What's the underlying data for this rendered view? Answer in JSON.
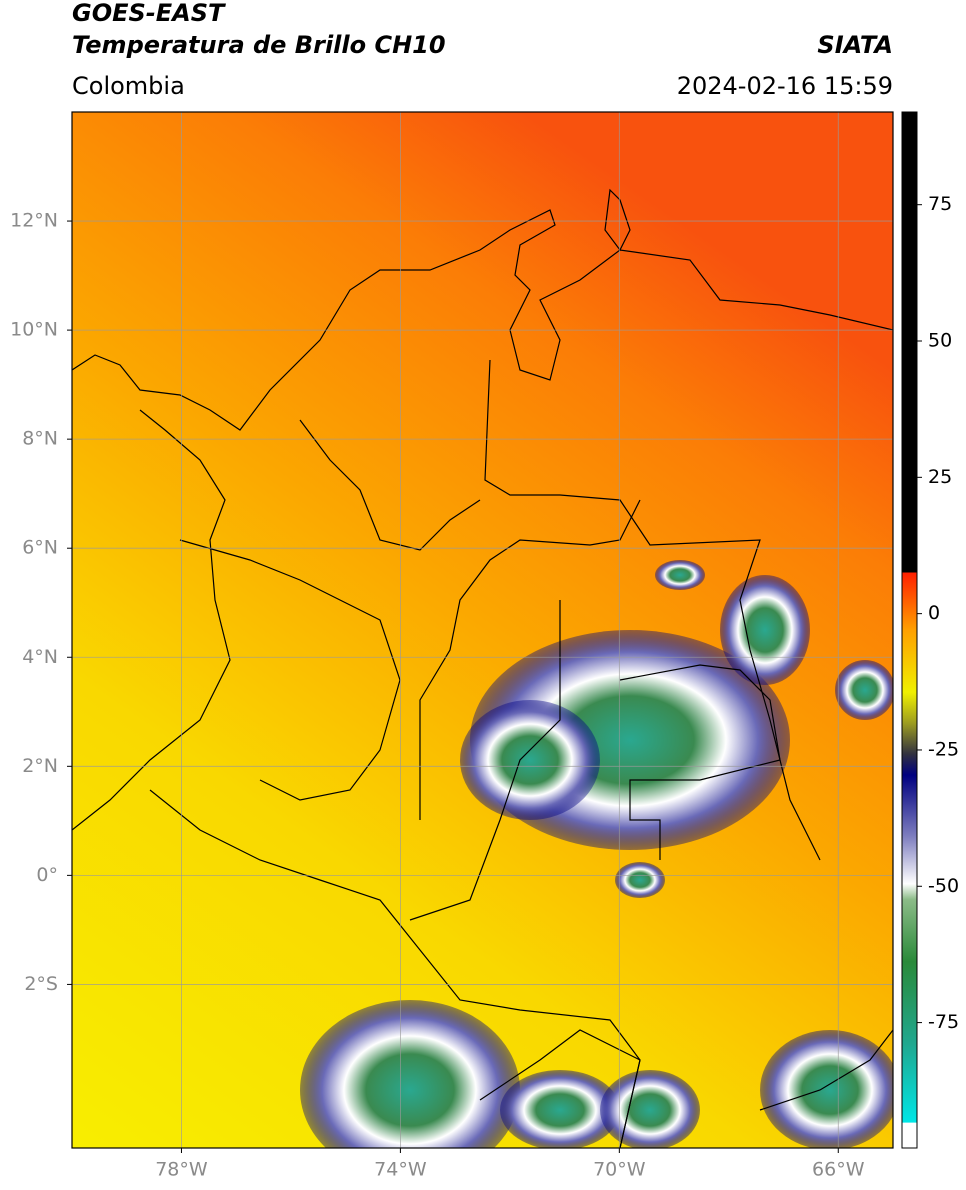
{
  "header": {
    "title_line1": "GOES-EAST",
    "title_line2": "Temperatura de Brillo CH10",
    "region": "Colombia",
    "source": "SIATA",
    "datetime": "2024-02-16 15:59"
  },
  "map": {
    "lon_lim": [
      -80,
      -65
    ],
    "lat_lim": [
      -5,
      14
    ],
    "lat_ticks": [
      {
        "value": 12,
        "label": "12°N"
      },
      {
        "value": 10,
        "label": "10°N"
      },
      {
        "value": 8,
        "label": "8°N"
      },
      {
        "value": 6,
        "label": "6°N"
      },
      {
        "value": 4,
        "label": "4°N"
      },
      {
        "value": 2,
        "label": "2°N"
      },
      {
        "value": 0,
        "label": "0°"
      },
      {
        "value": -2,
        "label": "2°S"
      }
    ],
    "lon_ticks": [
      {
        "value": -78,
        "label": "78°W"
      },
      {
        "value": -74,
        "label": "74°W"
      },
      {
        "value": -70,
        "label": "70°W"
      },
      {
        "value": -66,
        "label": "66°W"
      }
    ]
  },
  "colorbar": {
    "lim": [
      -98,
      92
    ],
    "ticks": [
      75,
      50,
      25,
      0,
      -25,
      -50,
      -75
    ]
  }
}
